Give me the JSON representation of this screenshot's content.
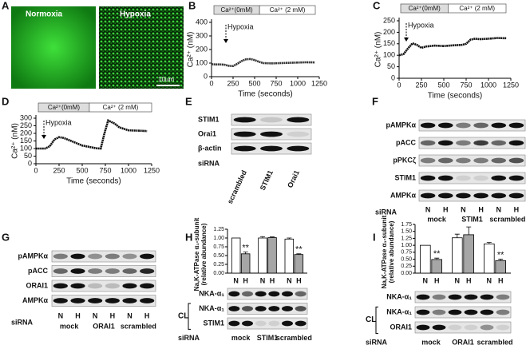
{
  "panel_letters": [
    "A",
    "B",
    "C",
    "D",
    "E",
    "F",
    "G",
    "H",
    "I"
  ],
  "panel_a": {
    "labels": [
      "Normoxia",
      "Hypoxia"
    ],
    "scale_bar": "10um"
  },
  "chart_data": [
    {
      "type": "line",
      "conditions": [
        "Ca²⁺(0mM)",
        "Ca²⁺ (2 mM)"
      ],
      "annotation": "Hypoxia",
      "xlabel": "Time (seconds)",
      "ylabel": "Ca²⁺ (nM)",
      "x": [
        0,
        50,
        100,
        150,
        200,
        250,
        300,
        350,
        400,
        450,
        500,
        550,
        600,
        700,
        800,
        900,
        1000,
        1100,
        1200
      ],
      "values": [
        92,
        90,
        90,
        88,
        80,
        78,
        95,
        115,
        128,
        130,
        122,
        110,
        100,
        98,
        100,
        102,
        104,
        106,
        105
      ],
      "color": "#333333",
      "xlim": [
        0,
        1250
      ],
      "ylim": [
        0,
        400
      ],
      "xticks": [
        0,
        250,
        500,
        750,
        1000,
        1250
      ],
      "yticks": [
        0,
        100,
        200,
        300,
        400
      ]
    },
    {
      "type": "line",
      "conditions": [
        "Ca²⁺(0mM)",
        "Ca²⁺ (2 mM)"
      ],
      "annotation": "Hypoxia",
      "xlabel": "Time (seconds)",
      "ylabel": "Ca²⁺ (nM)",
      "x": [
        0,
        50,
        100,
        150,
        200,
        250,
        300,
        400,
        500,
        600,
        700,
        750,
        800,
        850,
        900,
        1000,
        1100,
        1200
      ],
      "values": [
        100,
        105,
        130,
        152,
        145,
        132,
        138,
        142,
        140,
        143,
        145,
        150,
        168,
        172,
        170,
        172,
        175,
        174
      ],
      "color": "#111111",
      "xlim": [
        0,
        1250
      ],
      "ylim": [
        0,
        250
      ],
      "xticks": [
        0,
        250,
        500,
        750,
        1000,
        1250
      ],
      "yticks": [
        0,
        50,
        100,
        150,
        200,
        250
      ]
    },
    {
      "type": "line",
      "conditions": [
        "Ca²⁺(0mM)",
        "Ca²⁺ (2 mM)"
      ],
      "annotation": "Hypoxia",
      "xlabel": "Time (seconds)",
      "ylabel": "Ca²⁺ (nM)",
      "x": [
        0,
        50,
        100,
        150,
        200,
        250,
        300,
        400,
        500,
        600,
        650,
        700,
        740,
        780,
        850,
        900,
        1000,
        1100,
        1200
      ],
      "values": [
        100,
        100,
        100,
        115,
        160,
        175,
        170,
        145,
        120,
        108,
        102,
        100,
        200,
        285,
        265,
        240,
        220,
        218,
        215
      ],
      "color": "#111111",
      "xlim": [
        0,
        1250
      ],
      "ylim": [
        0,
        300
      ],
      "xticks": [
        0,
        250,
        500,
        750,
        1000,
        1250
      ],
      "yticks": [
        0,
        50,
        100,
        150,
        200,
        250,
        300
      ]
    },
    {
      "type": "bar",
      "ylabel": [
        "Na,K-ATPase α₁-subunit",
        "(relative abundance)"
      ],
      "categories": [
        "N",
        "H",
        "N",
        "H",
        "N",
        "H"
      ],
      "values": [
        1.0,
        0.55,
        1.0,
        1.01,
        0.97,
        0.53
      ],
      "errors": [
        0,
        0.05,
        0.04,
        0.02,
        0.03,
        0.02
      ],
      "colors": [
        "#ffffff",
        "#a6a6a6",
        "#ffffff",
        "#a6a6a6",
        "#ffffff",
        "#a6a6a6"
      ],
      "annotations": [
        {
          "index": 1,
          "text": "**"
        },
        {
          "index": 5,
          "text": "**"
        }
      ],
      "ylim": [
        0,
        1.25
      ],
      "yticks": [
        {
          "value": 0,
          "label": "0.00"
        },
        {
          "value": 0.25,
          "label": "0.25"
        },
        {
          "value": 0.5,
          "label": "0.50"
        },
        {
          "value": 0.75,
          "label": "0.75"
        },
        {
          "value": 1,
          "label": "1.00"
        },
        {
          "value": 1.25,
          "label": "1.25"
        }
      ]
    },
    {
      "type": "bar",
      "ylabel": [
        "Na,K-ATPase α₁-subunit",
        "(relative abundance)"
      ],
      "categories": [
        "N",
        "H",
        "N",
        "H",
        "N",
        "H"
      ],
      "values": [
        1.0,
        0.49,
        1.27,
        1.38,
        1.05,
        0.45
      ],
      "errors": [
        0,
        0.05,
        0.13,
        0.28,
        0.05,
        0.05
      ],
      "colors": [
        "#ffffff",
        "#a6a6a6",
        "#ffffff",
        "#a6a6a6",
        "#ffffff",
        "#a6a6a6"
      ],
      "annotations": [
        {
          "index": 1,
          "text": "**"
        },
        {
          "index": 5,
          "text": "**"
        }
      ],
      "ylim": [
        0,
        1.75
      ],
      "yticks": [
        {
          "value": 0,
          "label": "0.00"
        },
        {
          "value": 0.25,
          "label": "0.25"
        },
        {
          "value": 0.5,
          "label": "0.50"
        },
        {
          "value": 0.75,
          "label": "0.75"
        },
        {
          "value": 1,
          "label": "1.00"
        },
        {
          "value": 1.25,
          "label": "1.25"
        },
        {
          "value": 1.5,
          "label": "1.50"
        },
        {
          "value": 1.75,
          "label": "1.75"
        }
      ]
    }
  ],
  "blot_e": {
    "rows": [
      "STIM1",
      "Orai1",
      "β-actin"
    ],
    "row_label": "siRNA",
    "lanes": [
      "scrambled",
      "STIM1",
      "Orai1"
    ]
  },
  "blot_f": {
    "rows": [
      "pAMPKα",
      "pACC",
      "pPKCζ",
      "STIM1",
      "AMPKα"
    ],
    "row_label": "siRNA",
    "lanes": [
      "N",
      "H",
      "N",
      "H",
      "N",
      "H"
    ],
    "groups": [
      "mock",
      "STIM1",
      "scrambled"
    ]
  },
  "blot_g": {
    "rows": [
      "pAMPKα",
      "pACC",
      "ORAI1",
      "AMPKα"
    ],
    "row_label": "siRNA",
    "lanes": [
      "N",
      "H",
      "N",
      "H",
      "N",
      "H"
    ],
    "groups": [
      "mock",
      "ORAI1",
      "scrambled"
    ]
  },
  "blot_h": {
    "rows": [
      "NKA-α₁",
      "NKA-α₁",
      "STIM1"
    ],
    "cl": "CL",
    "row_label": "siRNA",
    "groups": [
      "mock",
      "STIM1",
      "scrambled"
    ]
  },
  "blot_i": {
    "rows": [
      "NKA-α₁",
      "NKA-α₁",
      "ORAI1"
    ],
    "cl": "CL",
    "row_label": "siRNA",
    "groups": [
      "mock",
      "ORAI1",
      "scrambled"
    ]
  }
}
